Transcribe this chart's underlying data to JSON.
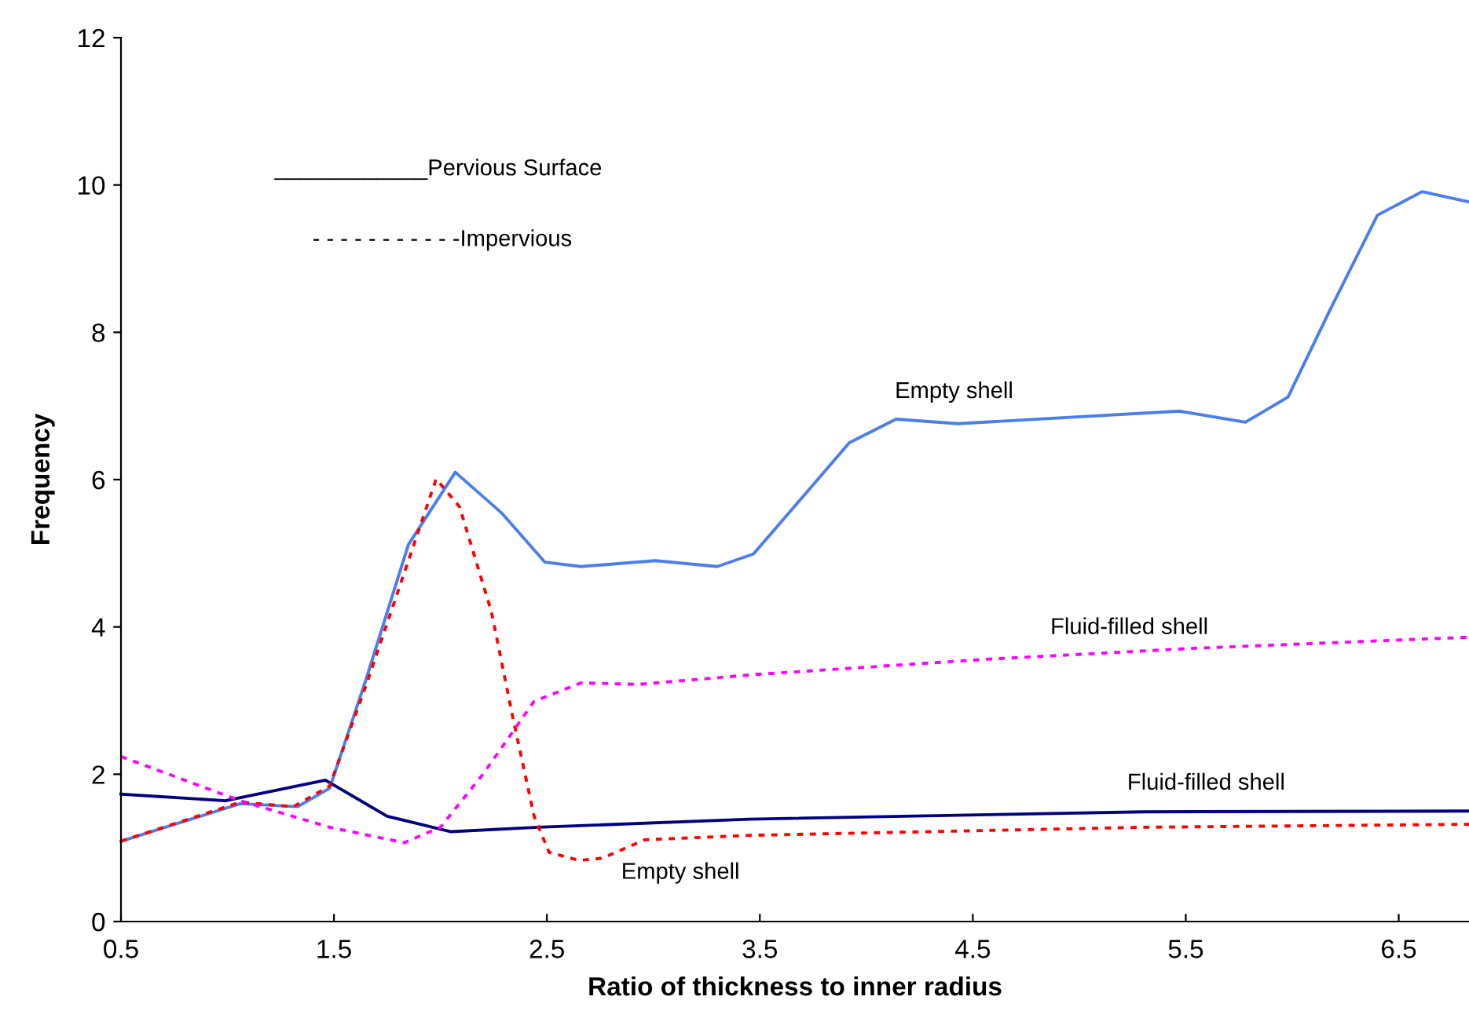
{
  "chart_data": {
    "type": "line",
    "xlabel": "Ratio of thickness to inner radius",
    "ylabel": "Frequency",
    "xlim": [
      0.5,
      6.83
    ],
    "xticks": [
      0.5,
      1.5,
      2.5,
      3.5,
      4.5,
      5.5,
      6.5
    ],
    "ylim": [
      0,
      12
    ],
    "yticks": [
      0,
      2,
      4,
      6,
      8,
      10,
      12
    ],
    "grid": false,
    "marker": "none",
    "series": [
      {
        "color": "#4a7ef0",
        "line_style": "solid",
        "x": [
          0.5,
          1.06,
          1.33,
          1.48,
          1.65,
          1.85,
          2.07,
          2.29,
          2.49,
          2.66,
          3.01,
          3.3,
          3.47,
          3.7,
          3.92,
          4.14,
          4.43,
          5.47,
          5.78,
          5.98,
          6.18,
          6.4,
          6.61,
          6.83
        ],
        "values": [
          1.09,
          1.6,
          1.56,
          1.81,
          3.28,
          5.12,
          6.1,
          5.54,
          4.88,
          4.82,
          4.9,
          4.82,
          4.99,
          5.76,
          6.5,
          6.82,
          6.76,
          6.93,
          6.78,
          7.12,
          8.32,
          9.59,
          9.91,
          9.77
        ]
      },
      {
        "color": "#000080",
        "line_style": "solid",
        "x": [
          0.5,
          0.99,
          1.46,
          1.75,
          2.05,
          2.46,
          3.45,
          5.3,
          6.83
        ],
        "values": [
          1.73,
          1.64,
          1.92,
          1.43,
          1.22,
          1.28,
          1.39,
          1.49,
          1.5
        ]
      },
      {
        "color": "#ff0000",
        "line_style": "dotted",
        "x": [
          0.5,
          1.06,
          1.31,
          1.48,
          1.65,
          1.98,
          2.09,
          2.24,
          2.34,
          2.44,
          2.51,
          2.65,
          2.76,
          2.96,
          3.45,
          5.3,
          6.83
        ],
        "values": [
          1.09,
          1.62,
          1.56,
          1.84,
          3.2,
          6.01,
          5.63,
          4.2,
          2.77,
          1.43,
          0.94,
          0.83,
          0.86,
          1.11,
          1.17,
          1.28,
          1.32
        ]
      },
      {
        "color": "#ff00ff",
        "line_style": "dotted",
        "x": [
          0.5,
          1.06,
          1.48,
          1.83,
          2.0,
          2.2,
          2.44,
          2.66,
          2.93,
          3.46,
          4.56,
          5.54,
          6.83
        ],
        "values": [
          2.24,
          1.64,
          1.28,
          1.07,
          1.28,
          2.0,
          2.99,
          3.24,
          3.22,
          3.35,
          3.56,
          3.71,
          3.86
        ]
      }
    ],
    "annotations": [
      "____________Pervious Surface",
      "- - - - - - - - - - -Impervious",
      "Empty shell",
      "Empty shell",
      "Fluid-filled shell",
      "Fluid-filled shell"
    ]
  }
}
